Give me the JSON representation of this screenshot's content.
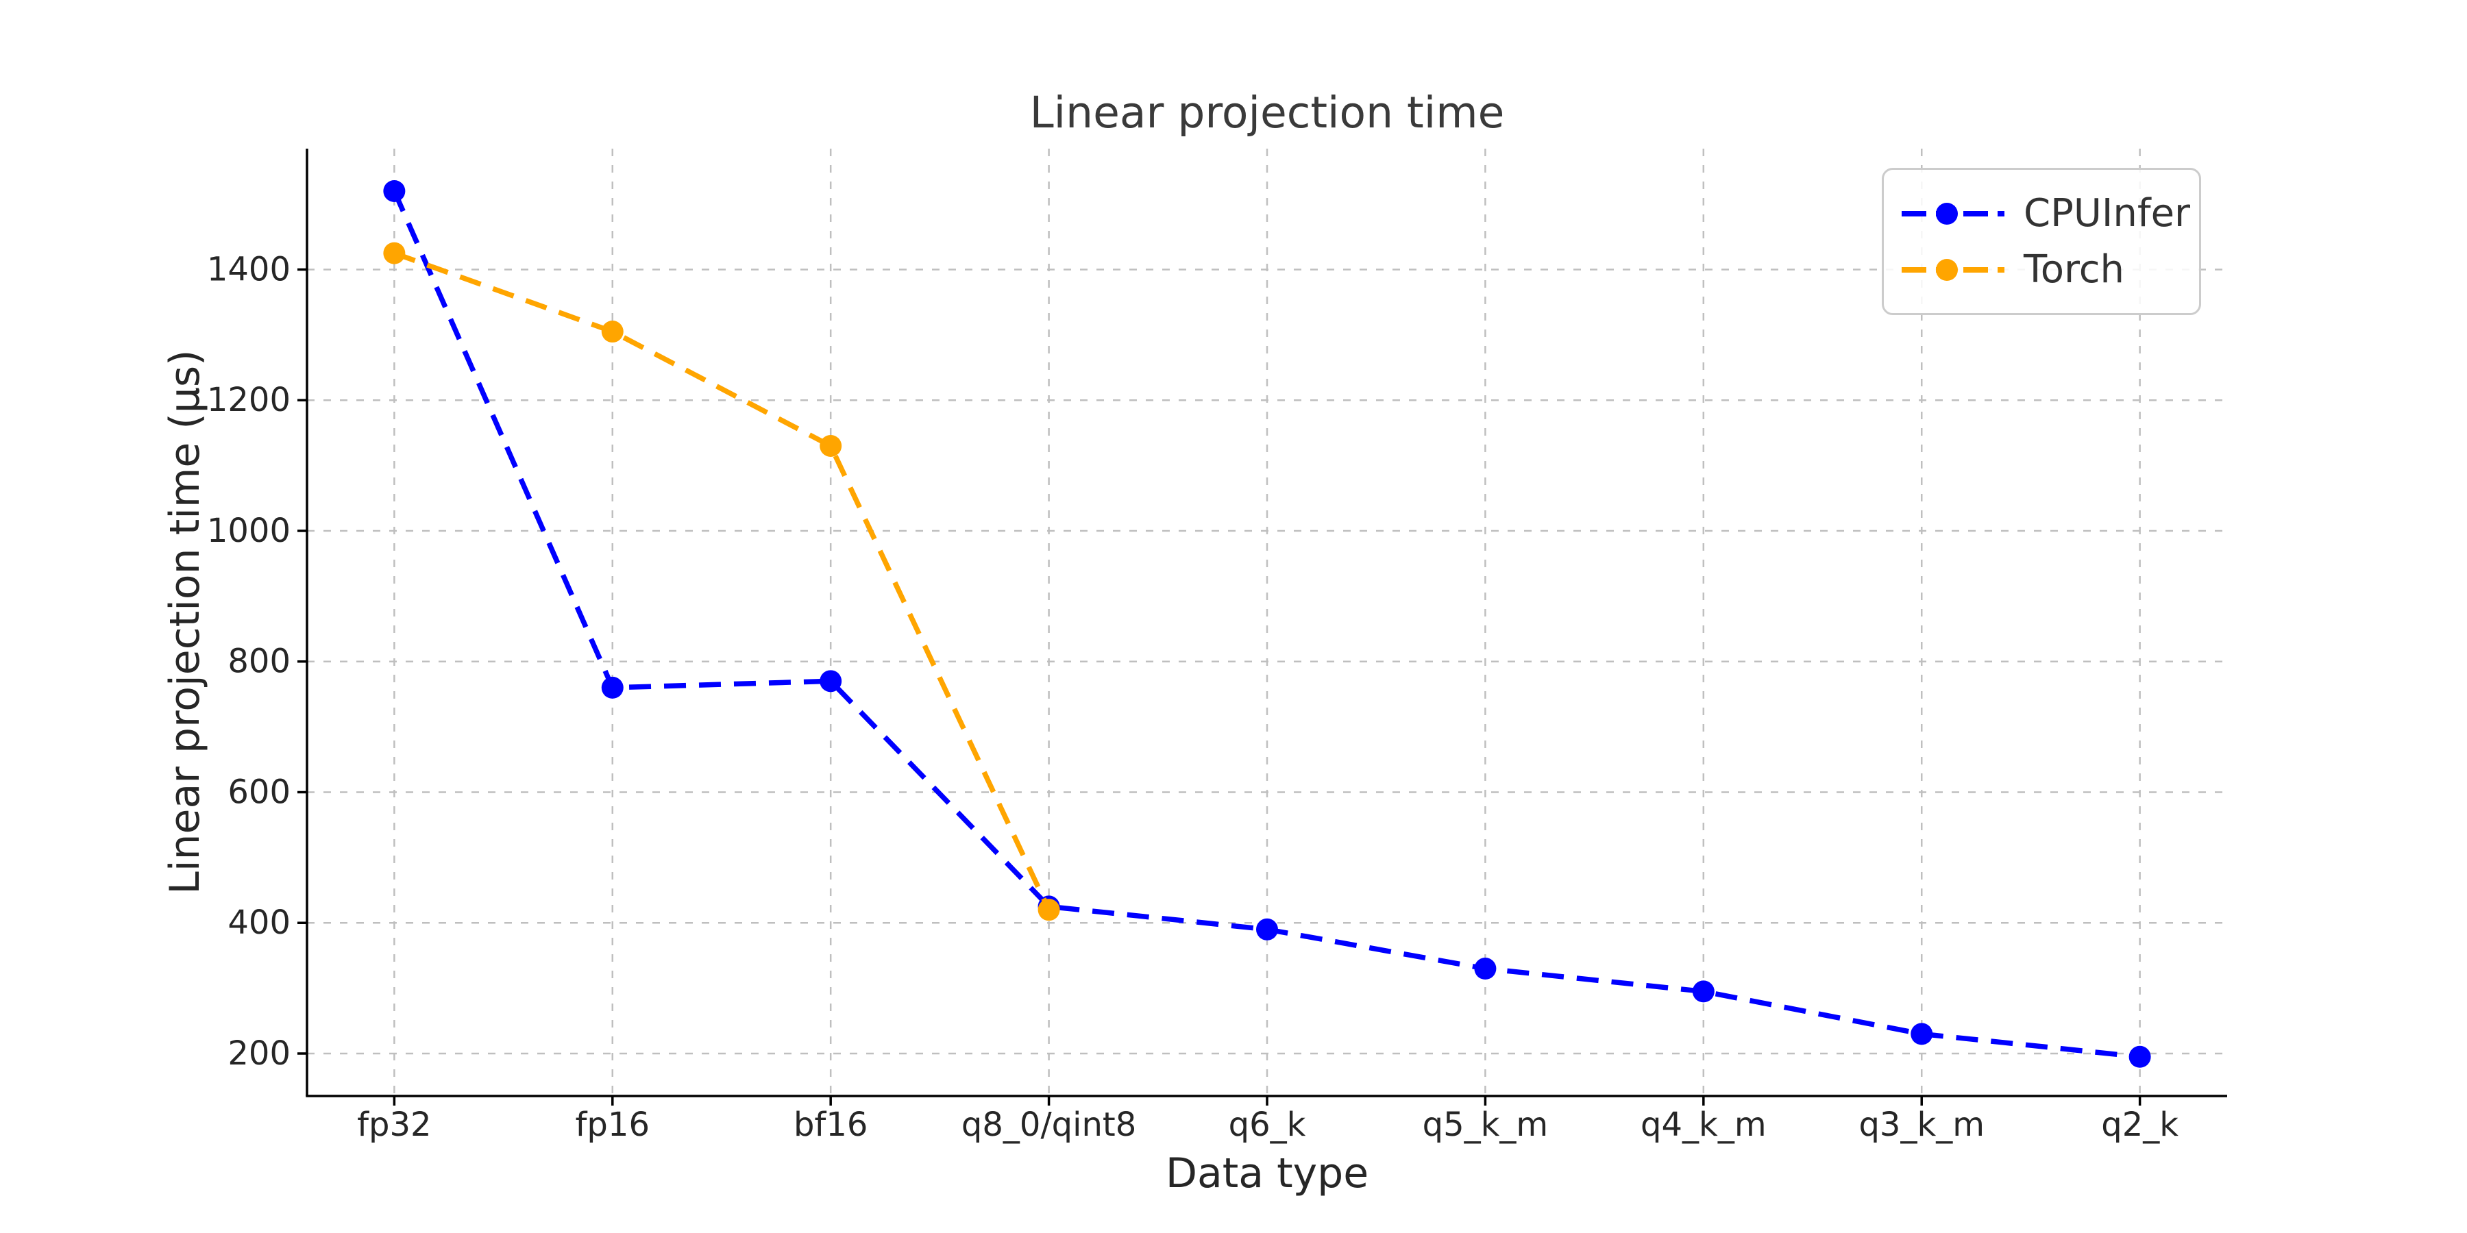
{
  "figure": {
    "background": "#ffffff"
  },
  "chart_data": {
    "type": "line",
    "title": "Linear projection time",
    "xlabel": "Data type",
    "ylabel": "Linear projection time (µs)",
    "categories": [
      "fp32",
      "fp16",
      "bf16",
      "q8_0/qint8",
      "q6_k",
      "q5_k_m",
      "q4_k_m",
      "q3_k_m",
      "q2_k"
    ],
    "series": [
      {
        "name": "CPUInfer",
        "color": "#0000ff",
        "linestyle": "dashed",
        "marker": "circle",
        "values": [
          1520,
          760,
          770,
          425,
          390,
          330,
          295,
          230,
          195
        ]
      },
      {
        "name": "Torch",
        "color": "#ffa500",
        "linestyle": "dashed",
        "marker": "circle",
        "values": [
          1425,
          1305,
          1130,
          420,
          null,
          null,
          null,
          null,
          null
        ]
      }
    ],
    "yticks": [
      200,
      400,
      600,
      800,
      1000,
      1200,
      1400
    ],
    "ylim": [
      135,
      1585
    ],
    "grid": true,
    "grid_color": "#bfbfbf",
    "axis_color": "#000000",
    "tick_label_color": "#262626",
    "legend_position": "upper right"
  }
}
